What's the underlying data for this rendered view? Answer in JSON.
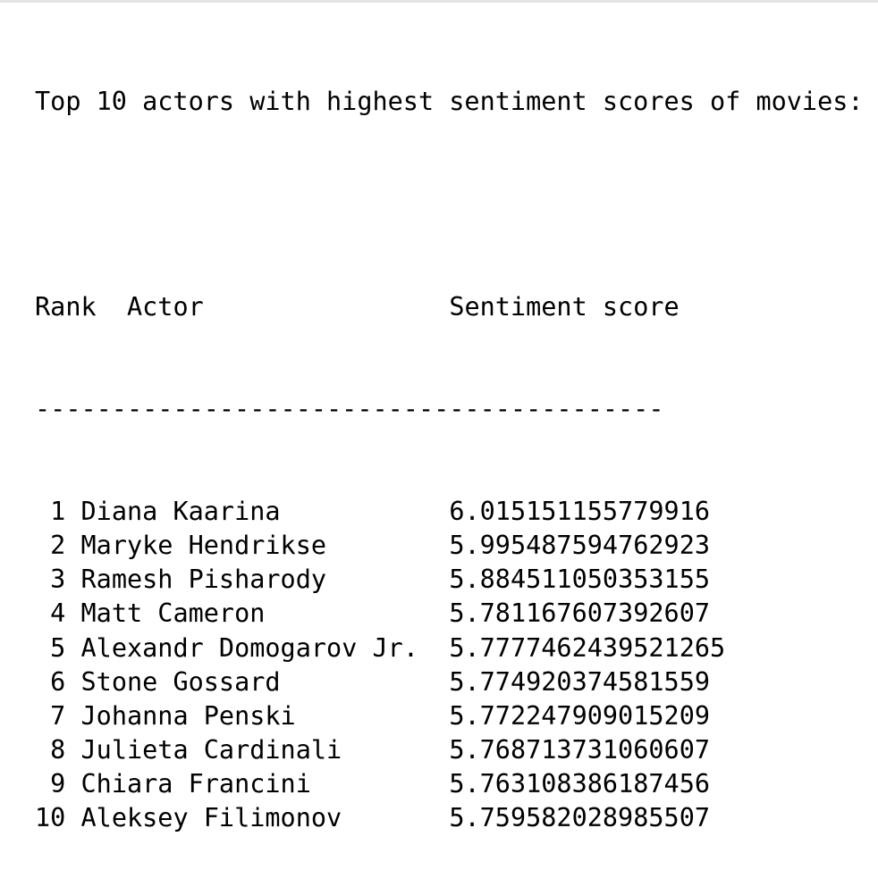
{
  "heading": "Top 10 actors with highest sentiment scores of movies:",
  "columns": {
    "rank": "Rank",
    "actor": "Actor",
    "score": "Sentiment score"
  },
  "separator": "-----------------------------------------",
  "rows": [
    {
      "rank": " 1",
      "actor": "Diana Kaarina",
      "score": "6.015151155779916"
    },
    {
      "rank": " 2",
      "actor": "Maryke Hendrikse",
      "score": "5.995487594762923"
    },
    {
      "rank": " 3",
      "actor": "Ramesh Pisharody",
      "score": "5.884511050353155"
    },
    {
      "rank": " 4",
      "actor": "Matt Cameron",
      "score": "5.781167607392607"
    },
    {
      "rank": " 5",
      "actor": "Alexandr Domogarov Jr.",
      "score": "5.7777462439521265"
    },
    {
      "rank": " 6",
      "actor": "Stone Gossard",
      "score": "5.774920374581559"
    },
    {
      "rank": " 7",
      "actor": "Johanna Penski",
      "score": "5.772247909015209"
    },
    {
      "rank": " 8",
      "actor": "Julieta Cardinali",
      "score": "5.768713731060607"
    },
    {
      "rank": " 9",
      "actor": "Chiara Francini",
      "score": "5.763108386187456"
    },
    {
      "rank": "10",
      "actor": "Aleksey Filimonov",
      "score": "5.759582028985507"
    }
  ]
}
